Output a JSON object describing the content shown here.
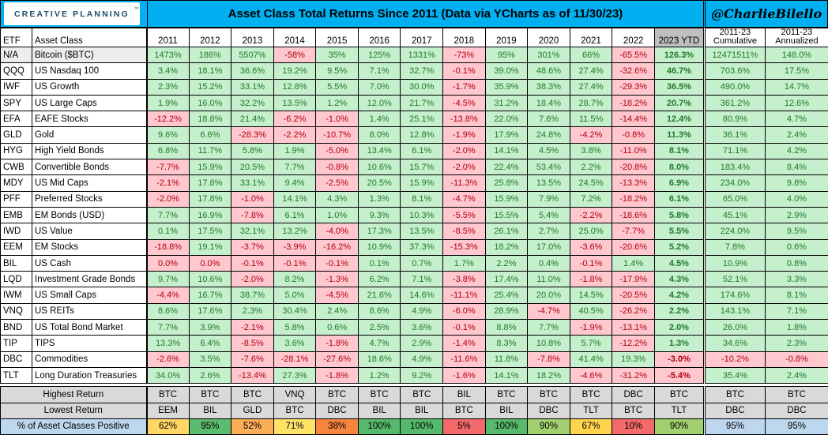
{
  "header": {
    "logo_text": "CREATIVE PLANNING",
    "logo_trademark": "™",
    "title": "Asset Class Total Returns Since 2011 (Data via YCharts as of 11/30/23)",
    "handle": "@CharlieBilello"
  },
  "colors": {
    "header_cyan": "#00B0F0",
    "positive_bg": "#C6EFCE",
    "positive_text": "#1E7B25",
    "negative_bg": "#FFC7CE",
    "negative_text": "#B00010",
    "ytd_header_bg": "#BFBFBF",
    "summary_bg": "#D9D9D9",
    "pct_label_bg": "#BDD7EE",
    "highlight_row_bg": "#EDEDED",
    "logo_navy": "#1D4E6E",
    "logo_gold": "#C9A15C"
  },
  "chart_data": {
    "type": "table",
    "title": "Asset Class Total Returns Since 2011 (Data via YCharts as of 11/30/23)",
    "col_headers": {
      "etf": "ETF",
      "asset_class": "Asset Class",
      "years": [
        "2011",
        "2012",
        "2013",
        "2014",
        "2015",
        "2016",
        "2017",
        "2018",
        "2019",
        "2020",
        "2021",
        "2022"
      ],
      "ytd": "2023 YTD",
      "cumulative": [
        "2011-23",
        "Cumulative"
      ],
      "annualized": [
        "2011-23",
        "Annualized"
      ]
    },
    "rows": [
      {
        "etf": "N/A",
        "asset": "Bitcoin ($BTC)",
        "highlight": true,
        "values": [
          "1473%",
          "186%",
          "5507%",
          "-58%",
          "35%",
          "125%",
          "1331%",
          "-73%",
          "95%",
          "301%",
          "66%",
          "-65.5%",
          "126.3%",
          "12471511%",
          "148.0%"
        ]
      },
      {
        "etf": "QQQ",
        "asset": "US Nasdaq 100",
        "values": [
          "3.4%",
          "18.1%",
          "36.6%",
          "19.2%",
          "9.5%",
          "7.1%",
          "32.7%",
          "-0.1%",
          "39.0%",
          "48.6%",
          "27.4%",
          "-32.6%",
          "46.7%",
          "703.6%",
          "17.5%"
        ]
      },
      {
        "etf": "IWF",
        "asset": "US Growth",
        "values": [
          "2.3%",
          "15.2%",
          "33.1%",
          "12.8%",
          "5.5%",
          "7.0%",
          "30.0%",
          "-1.7%",
          "35.9%",
          "38.3%",
          "27.4%",
          "-29.3%",
          "36.5%",
          "490.0%",
          "14.7%"
        ]
      },
      {
        "etf": "SPY",
        "asset": "US Large Caps",
        "values": [
          "1.9%",
          "16.0%",
          "32.2%",
          "13.5%",
          "1.2%",
          "12.0%",
          "21.7%",
          "-4.5%",
          "31.2%",
          "18.4%",
          "28.7%",
          "-18.2%",
          "20.7%",
          "361.2%",
          "12.6%"
        ]
      },
      {
        "etf": "EFA",
        "asset": "EAFE Stocks",
        "values": [
          "-12.2%",
          "18.8%",
          "21.4%",
          "-6.2%",
          "-1.0%",
          "1.4%",
          "25.1%",
          "-13.8%",
          "22.0%",
          "7.6%",
          "11.5%",
          "-14.4%",
          "12.4%",
          "80.9%",
          "4.7%"
        ]
      },
      {
        "etf": "GLD",
        "asset": "Gold",
        "values": [
          "9.6%",
          "6.6%",
          "-28.3%",
          "-2.2%",
          "-10.7%",
          "8.0%",
          "12.8%",
          "-1.9%",
          "17.9%",
          "24.8%",
          "-4.2%",
          "-0.8%",
          "11.3%",
          "36.1%",
          "2.4%"
        ]
      },
      {
        "etf": "HYG",
        "asset": "High Yield Bonds",
        "values": [
          "6.8%",
          "11.7%",
          "5.8%",
          "1.9%",
          "-5.0%",
          "13.4%",
          "6.1%",
          "-2.0%",
          "14.1%",
          "4.5%",
          "3.8%",
          "-11.0%",
          "8.1%",
          "71.1%",
          "4.2%"
        ]
      },
      {
        "etf": "CWB",
        "asset": "Convertible Bonds",
        "values": [
          "-7.7%",
          "15.9%",
          "20.5%",
          "7.7%",
          "-0.8%",
          "10.6%",
          "15.7%",
          "-2.0%",
          "22.4%",
          "53.4%",
          "2.2%",
          "-20.8%",
          "8.0%",
          "183.4%",
          "8.4%"
        ]
      },
      {
        "etf": "MDY",
        "asset": "US Mid Caps",
        "values": [
          "-2.1%",
          "17.8%",
          "33.1%",
          "9.4%",
          "-2.5%",
          "20.5%",
          "15.9%",
          "-11.3%",
          "25.8%",
          "13.5%",
          "24.5%",
          "-13.3%",
          "6.9%",
          "234.0%",
          "9.8%"
        ]
      },
      {
        "etf": "PFF",
        "asset": "Preferred Stocks",
        "values": [
          "-2.0%",
          "17.8%",
          "-1.0%",
          "14.1%",
          "4.3%",
          "1.3%",
          "8.1%",
          "-4.7%",
          "15.9%",
          "7.9%",
          "7.2%",
          "-18.2%",
          "6.1%",
          "65.0%",
          "4.0%"
        ]
      },
      {
        "etf": "EMB",
        "asset": "EM Bonds (USD)",
        "values": [
          "7.7%",
          "16.9%",
          "-7.8%",
          "6.1%",
          "1.0%",
          "9.3%",
          "10.3%",
          "-5.5%",
          "15.5%",
          "5.4%",
          "-2.2%",
          "-18.6%",
          "5.8%",
          "45.1%",
          "2.9%"
        ]
      },
      {
        "etf": "IWD",
        "asset": "US Value",
        "values": [
          "0.1%",
          "17.5%",
          "32.1%",
          "13.2%",
          "-4.0%",
          "17.3%",
          "13.5%",
          "-8.5%",
          "26.1%",
          "2.7%",
          "25.0%",
          "-7.7%",
          "5.5%",
          "224.0%",
          "9.5%"
        ]
      },
      {
        "etf": "EEM",
        "asset": "EM Stocks",
        "values": [
          "-18.8%",
          "19.1%",
          "-3.7%",
          "-3.9%",
          "-16.2%",
          "10.9%",
          "37.3%",
          "-15.3%",
          "18.2%",
          "17.0%",
          "-3.6%",
          "-20.6%",
          "5.2%",
          "7.8%",
          "0.6%"
        ]
      },
      {
        "etf": "BIL",
        "asset": "US Cash",
        "values": [
          "0.0%",
          "0.0%",
          "-0.1%",
          "-0.1%",
          "-0.1%",
          "0.1%",
          "0.7%",
          "1.7%",
          "2.2%",
          "0.4%",
          "-0.1%",
          "1.4%",
          "4.5%",
          "10.9%",
          "0.8%"
        ]
      },
      {
        "etf": "LQD",
        "asset": "Investment Grade Bonds",
        "values": [
          "9.7%",
          "10.6%",
          "-2.0%",
          "8.2%",
          "-1.3%",
          "6.2%",
          "7.1%",
          "-3.8%",
          "17.4%",
          "11.0%",
          "-1.8%",
          "-17.9%",
          "4.3%",
          "52.1%",
          "3.3%"
        ]
      },
      {
        "etf": "IWM",
        "asset": "US Small Caps",
        "values": [
          "-4.4%",
          "16.7%",
          "38.7%",
          "5.0%",
          "-4.5%",
          "21.6%",
          "14.6%",
          "-11.1%",
          "25.4%",
          "20.0%",
          "14.5%",
          "-20.5%",
          "4.2%",
          "174.6%",
          "8.1%"
        ]
      },
      {
        "etf": "VNQ",
        "asset": "US REITs",
        "values": [
          "8.6%",
          "17.6%",
          "2.3%",
          "30.4%",
          "2.4%",
          "8.6%",
          "4.9%",
          "-6.0%",
          "28.9%",
          "-4.7%",
          "40.5%",
          "-26.2%",
          "2.2%",
          "143.1%",
          "7.1%"
        ]
      },
      {
        "etf": "BND",
        "asset": "US Total Bond Market",
        "values": [
          "7.7%",
          "3.9%",
          "-2.1%",
          "5.8%",
          "0.6%",
          "2.5%",
          "3.6%",
          "-0.1%",
          "8.8%",
          "7.7%",
          "-1.9%",
          "-13.1%",
          "2.0%",
          "26.0%",
          "1.8%"
        ]
      },
      {
        "etf": "TIP",
        "asset": "TIPS",
        "values": [
          "13.3%",
          "6.4%",
          "-8.5%",
          "3.6%",
          "-1.8%",
          "4.7%",
          "2.9%",
          "-1.4%",
          "8.3%",
          "10.8%",
          "5.7%",
          "-12.2%",
          "1.3%",
          "34.6%",
          "2.3%"
        ]
      },
      {
        "etf": "DBC",
        "asset": "Commodities",
        "values": [
          "-2.6%",
          "3.5%",
          "-7.6%",
          "-28.1%",
          "-27.6%",
          "18.6%",
          "4.9%",
          "-11.6%",
          "11.8%",
          "-7.8%",
          "41.4%",
          "19.3%",
          "-3.0%",
          "-10.2%",
          "-0.8%"
        ]
      },
      {
        "etf": "TLT",
        "asset": "Long Duration Treasuries",
        "values": [
          "34.0%",
          "2.6%",
          "-13.4%",
          "27.3%",
          "-1.8%",
          "1.2%",
          "9.2%",
          "-1.6%",
          "14.1%",
          "18.2%",
          "-4.6%",
          "-31.2%",
          "-5.4%",
          "35.4%",
          "2.4%"
        ]
      }
    ],
    "summary": [
      {
        "type": "highest",
        "label": "Highest Return",
        "values": [
          "BTC",
          "BTC",
          "BTC",
          "VNQ",
          "BTC",
          "BTC",
          "BTC",
          "BIL",
          "BTC",
          "BTC",
          "BTC",
          "DBC",
          "BTC",
          "BTC",
          "BTC"
        ]
      },
      {
        "type": "lowest",
        "label": "Lowest Return",
        "values": [
          "EEM",
          "BIL",
          "GLD",
          "BTC",
          "DBC",
          "BIL",
          "BIL",
          "BTC",
          "BIL",
          "DBC",
          "TLT",
          "BTC",
          "TLT",
          "DBC",
          "DBC"
        ]
      },
      {
        "type": "pct",
        "label": "% of Asset Classes Positive",
        "values": [
          "62%",
          "95%",
          "52%",
          "71%",
          "38%",
          "100%",
          "100%",
          "5%",
          "100%",
          "90%",
          "67%",
          "10%",
          "90%",
          "95%",
          "95%"
        ],
        "cell_colors": [
          "#FFD767",
          "#5BBB6E",
          "#FBAD57",
          "#FFE268",
          "#F8853F",
          "#56B96B",
          "#56B96B",
          "#F4696A",
          "#56B96B",
          "#A2D06F",
          "#FFD44F",
          "#F4696A",
          "#A2D06F",
          "#BDD7EE",
          "#BDD7EE"
        ]
      }
    ]
  }
}
